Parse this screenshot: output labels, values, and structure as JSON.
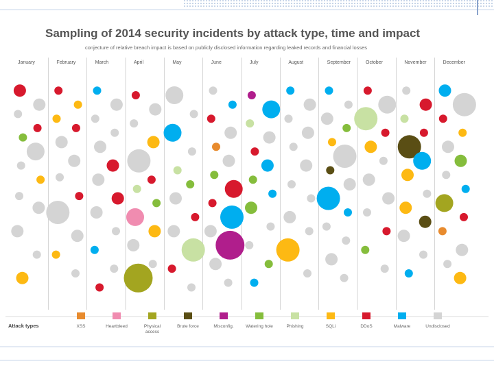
{
  "chart_data": {
    "type": "scatter",
    "title": "Sampling of 2014 security incidents by attack type, time and impact",
    "subtitle": "conjecture of relative breach impact is based on publicly disclosed information regarding leaked records and financial losses",
    "months": [
      "January",
      "February",
      "March",
      "April",
      "May",
      "June",
      "July",
      "August",
      "September",
      "October",
      "November",
      "December"
    ],
    "legend_title": "Attack types",
    "attack_types": [
      {
        "key": "xss",
        "label": "XSS",
        "color": "#E88B2E"
      },
      {
        "key": "heartbleed",
        "label": "Heartbleed",
        "color": "#F08CB0"
      },
      {
        "key": "physical",
        "label": "Physical access",
        "color": "#A3A520"
      },
      {
        "key": "brute",
        "label": "Brute force",
        "color": "#5A4E14"
      },
      {
        "key": "misconfig",
        "label": "Misconfig.",
        "color": "#B01E8C"
      },
      {
        "key": "watering",
        "label": "Watering hole",
        "color": "#85BD3C"
      },
      {
        "key": "phishing",
        "label": "Phishing",
        "color": "#C8E1A3"
      },
      {
        "key": "sqli",
        "label": "SQLi",
        "color": "#FDB913"
      },
      {
        "key": "ddos",
        "label": "DDoS",
        "color": "#D7192D"
      },
      {
        "key": "malware",
        "label": "Malware",
        "color": "#00AEEF"
      },
      {
        "key": "undisclosed",
        "label": "Undisclosed",
        "color": "#D4D4D4"
      }
    ],
    "incidents": [
      {
        "month": 1,
        "pos": 0.1,
        "type": "ddos",
        "impact": 2
      },
      {
        "month": 1,
        "pos": 0.16,
        "type": "undisclosed",
        "impact": 2
      },
      {
        "month": 1,
        "pos": 0.2,
        "type": "undisclosed",
        "impact": 1
      },
      {
        "month": 1,
        "pos": 0.26,
        "type": "ddos",
        "impact": 1
      },
      {
        "month": 1,
        "pos": 0.3,
        "type": "watering",
        "impact": 1
      },
      {
        "month": 1,
        "pos": 0.36,
        "type": "undisclosed",
        "impact": 3
      },
      {
        "month": 1,
        "pos": 0.42,
        "type": "undisclosed",
        "impact": 1
      },
      {
        "month": 1,
        "pos": 0.48,
        "type": "sqli",
        "impact": 1
      },
      {
        "month": 1,
        "pos": 0.55,
        "type": "undisclosed",
        "impact": 1
      },
      {
        "month": 1,
        "pos": 0.6,
        "type": "undisclosed",
        "impact": 2
      },
      {
        "month": 1,
        "pos": 0.7,
        "type": "undisclosed",
        "impact": 2
      },
      {
        "month": 1,
        "pos": 0.8,
        "type": "undisclosed",
        "impact": 1
      },
      {
        "month": 1,
        "pos": 0.9,
        "type": "sqli",
        "impact": 2
      },
      {
        "month": 2,
        "pos": 0.1,
        "type": "ddos",
        "impact": 1
      },
      {
        "month": 2,
        "pos": 0.16,
        "type": "sqli",
        "impact": 1
      },
      {
        "month": 2,
        "pos": 0.22,
        "type": "sqli",
        "impact": 1
      },
      {
        "month": 2,
        "pos": 0.26,
        "type": "ddos",
        "impact": 1
      },
      {
        "month": 2,
        "pos": 0.32,
        "type": "undisclosed",
        "impact": 2
      },
      {
        "month": 2,
        "pos": 0.4,
        "type": "undisclosed",
        "impact": 2
      },
      {
        "month": 2,
        "pos": 0.47,
        "type": "undisclosed",
        "impact": 1
      },
      {
        "month": 2,
        "pos": 0.55,
        "type": "ddos",
        "impact": 1
      },
      {
        "month": 2,
        "pos": 0.62,
        "type": "undisclosed",
        "impact": 4
      },
      {
        "month": 2,
        "pos": 0.72,
        "type": "undisclosed",
        "impact": 2
      },
      {
        "month": 2,
        "pos": 0.8,
        "type": "sqli",
        "impact": 1
      },
      {
        "month": 2,
        "pos": 0.88,
        "type": "undisclosed",
        "impact": 1
      },
      {
        "month": 3,
        "pos": 0.1,
        "type": "malware",
        "impact": 1
      },
      {
        "month": 3,
        "pos": 0.16,
        "type": "undisclosed",
        "impact": 2
      },
      {
        "month": 3,
        "pos": 0.22,
        "type": "undisclosed",
        "impact": 1
      },
      {
        "month": 3,
        "pos": 0.28,
        "type": "undisclosed",
        "impact": 1
      },
      {
        "month": 3,
        "pos": 0.34,
        "type": "undisclosed",
        "impact": 2
      },
      {
        "month": 3,
        "pos": 0.42,
        "type": "ddos",
        "impact": 2
      },
      {
        "month": 3,
        "pos": 0.48,
        "type": "undisclosed",
        "impact": 2
      },
      {
        "month": 3,
        "pos": 0.56,
        "type": "ddos",
        "impact": 2
      },
      {
        "month": 3,
        "pos": 0.62,
        "type": "undisclosed",
        "impact": 2
      },
      {
        "month": 3,
        "pos": 0.7,
        "type": "undisclosed",
        "impact": 1
      },
      {
        "month": 3,
        "pos": 0.78,
        "type": "malware",
        "impact": 1
      },
      {
        "month": 3,
        "pos": 0.86,
        "type": "undisclosed",
        "impact": 1
      },
      {
        "month": 3,
        "pos": 0.94,
        "type": "ddos",
        "impact": 1
      },
      {
        "month": 4,
        "pos": 0.12,
        "type": "ddos",
        "impact": 1
      },
      {
        "month": 4,
        "pos": 0.18,
        "type": "undisclosed",
        "impact": 2
      },
      {
        "month": 4,
        "pos": 0.24,
        "type": "undisclosed",
        "impact": 1
      },
      {
        "month": 4,
        "pos": 0.32,
        "type": "sqli",
        "impact": 2
      },
      {
        "month": 4,
        "pos": 0.4,
        "type": "undisclosed",
        "impact": 4
      },
      {
        "month": 4,
        "pos": 0.48,
        "type": "ddos",
        "impact": 1
      },
      {
        "month": 4,
        "pos": 0.52,
        "type": "phishing",
        "impact": 1
      },
      {
        "month": 4,
        "pos": 0.58,
        "type": "watering",
        "impact": 1
      },
      {
        "month": 4,
        "pos": 0.64,
        "type": "heartbleed",
        "impact": 3
      },
      {
        "month": 4,
        "pos": 0.7,
        "type": "sqli",
        "impact": 2
      },
      {
        "month": 4,
        "pos": 0.76,
        "type": "undisclosed",
        "impact": 2
      },
      {
        "month": 4,
        "pos": 0.84,
        "type": "undisclosed",
        "impact": 1
      },
      {
        "month": 4,
        "pos": 0.9,
        "type": "physical",
        "impact": 5
      },
      {
        "month": 5,
        "pos": 0.12,
        "type": "undisclosed",
        "impact": 3
      },
      {
        "month": 5,
        "pos": 0.2,
        "type": "undisclosed",
        "impact": 1
      },
      {
        "month": 5,
        "pos": 0.28,
        "type": "malware",
        "impact": 3
      },
      {
        "month": 5,
        "pos": 0.36,
        "type": "undisclosed",
        "impact": 1
      },
      {
        "month": 5,
        "pos": 0.44,
        "type": "phishing",
        "impact": 1
      },
      {
        "month": 5,
        "pos": 0.5,
        "type": "watering",
        "impact": 1
      },
      {
        "month": 5,
        "pos": 0.56,
        "type": "undisclosed",
        "impact": 2
      },
      {
        "month": 5,
        "pos": 0.64,
        "type": "ddos",
        "impact": 1
      },
      {
        "month": 5,
        "pos": 0.7,
        "type": "undisclosed",
        "impact": 2
      },
      {
        "month": 5,
        "pos": 0.78,
        "type": "phishing",
        "impact": 4
      },
      {
        "month": 5,
        "pos": 0.86,
        "type": "ddos",
        "impact": 1
      },
      {
        "month": 5,
        "pos": 0.94,
        "type": "undisclosed",
        "impact": 1
      },
      {
        "month": 6,
        "pos": 0.1,
        "type": "undisclosed",
        "impact": 1
      },
      {
        "month": 6,
        "pos": 0.16,
        "type": "malware",
        "impact": 1
      },
      {
        "month": 6,
        "pos": 0.22,
        "type": "ddos",
        "impact": 1
      },
      {
        "month": 6,
        "pos": 0.28,
        "type": "undisclosed",
        "impact": 2
      },
      {
        "month": 6,
        "pos": 0.34,
        "type": "xss",
        "impact": 1
      },
      {
        "month": 6,
        "pos": 0.4,
        "type": "undisclosed",
        "impact": 2
      },
      {
        "month": 6,
        "pos": 0.46,
        "type": "watering",
        "impact": 1
      },
      {
        "month": 6,
        "pos": 0.52,
        "type": "ddos",
        "impact": 3
      },
      {
        "month": 6,
        "pos": 0.58,
        "type": "ddos",
        "impact": 1
      },
      {
        "month": 6,
        "pos": 0.64,
        "type": "malware",
        "impact": 4
      },
      {
        "month": 6,
        "pos": 0.7,
        "type": "undisclosed",
        "impact": 2
      },
      {
        "month": 6,
        "pos": 0.76,
        "type": "misconfig",
        "impact": 5
      },
      {
        "month": 6,
        "pos": 0.84,
        "type": "undisclosed",
        "impact": 2
      },
      {
        "month": 6,
        "pos": 0.92,
        "type": "undisclosed",
        "impact": 1
      },
      {
        "month": 7,
        "pos": 0.12,
        "type": "misconfig",
        "impact": 1
      },
      {
        "month": 7,
        "pos": 0.18,
        "type": "malware",
        "impact": 3
      },
      {
        "month": 7,
        "pos": 0.24,
        "type": "phishing",
        "impact": 1
      },
      {
        "month": 7,
        "pos": 0.3,
        "type": "undisclosed",
        "impact": 2
      },
      {
        "month": 7,
        "pos": 0.36,
        "type": "ddos",
        "impact": 1
      },
      {
        "month": 7,
        "pos": 0.42,
        "type": "malware",
        "impact": 2
      },
      {
        "month": 7,
        "pos": 0.48,
        "type": "watering",
        "impact": 1
      },
      {
        "month": 7,
        "pos": 0.54,
        "type": "malware",
        "impact": 1
      },
      {
        "month": 7,
        "pos": 0.6,
        "type": "watering",
        "impact": 2
      },
      {
        "month": 7,
        "pos": 0.68,
        "type": "undisclosed",
        "impact": 1
      },
      {
        "month": 7,
        "pos": 0.76,
        "type": "undisclosed",
        "impact": 1
      },
      {
        "month": 7,
        "pos": 0.84,
        "type": "watering",
        "impact": 1
      },
      {
        "month": 7,
        "pos": 0.92,
        "type": "malware",
        "impact": 1
      },
      {
        "month": 8,
        "pos": 0.1,
        "type": "malware",
        "impact": 1
      },
      {
        "month": 8,
        "pos": 0.16,
        "type": "undisclosed",
        "impact": 2
      },
      {
        "month": 8,
        "pos": 0.22,
        "type": "undisclosed",
        "impact": 1
      },
      {
        "month": 8,
        "pos": 0.28,
        "type": "undisclosed",
        "impact": 2
      },
      {
        "month": 8,
        "pos": 0.34,
        "type": "undisclosed",
        "impact": 1
      },
      {
        "month": 8,
        "pos": 0.42,
        "type": "undisclosed",
        "impact": 2
      },
      {
        "month": 8,
        "pos": 0.5,
        "type": "undisclosed",
        "impact": 1
      },
      {
        "month": 8,
        "pos": 0.56,
        "type": "undisclosed",
        "impact": 1
      },
      {
        "month": 8,
        "pos": 0.64,
        "type": "undisclosed",
        "impact": 2
      },
      {
        "month": 8,
        "pos": 0.7,
        "type": "undisclosed",
        "impact": 1
      },
      {
        "month": 8,
        "pos": 0.78,
        "type": "sqli",
        "impact": 4
      },
      {
        "month": 8,
        "pos": 0.88,
        "type": "undisclosed",
        "impact": 1
      },
      {
        "month": 9,
        "pos": 0.1,
        "type": "malware",
        "impact": 1
      },
      {
        "month": 9,
        "pos": 0.16,
        "type": "undisclosed",
        "impact": 1
      },
      {
        "month": 9,
        "pos": 0.22,
        "type": "undisclosed",
        "impact": 2
      },
      {
        "month": 9,
        "pos": 0.26,
        "type": "watering",
        "impact": 1
      },
      {
        "month": 9,
        "pos": 0.32,
        "type": "sqli",
        "impact": 1
      },
      {
        "month": 9,
        "pos": 0.38,
        "type": "undisclosed",
        "impact": 4
      },
      {
        "month": 9,
        "pos": 0.44,
        "type": "brute",
        "impact": 1
      },
      {
        "month": 9,
        "pos": 0.5,
        "type": "undisclosed",
        "impact": 2
      },
      {
        "month": 9,
        "pos": 0.56,
        "type": "malware",
        "impact": 4
      },
      {
        "month": 9,
        "pos": 0.62,
        "type": "malware",
        "impact": 1
      },
      {
        "month": 9,
        "pos": 0.68,
        "type": "undisclosed",
        "impact": 1
      },
      {
        "month": 9,
        "pos": 0.74,
        "type": "undisclosed",
        "impact": 1
      },
      {
        "month": 9,
        "pos": 0.82,
        "type": "undisclosed",
        "impact": 2
      },
      {
        "month": 9,
        "pos": 0.9,
        "type": "undisclosed",
        "impact": 1
      },
      {
        "month": 10,
        "pos": 0.1,
        "type": "ddos",
        "impact": 1
      },
      {
        "month": 10,
        "pos": 0.16,
        "type": "undisclosed",
        "impact": 3
      },
      {
        "month": 10,
        "pos": 0.22,
        "type": "phishing",
        "impact": 4
      },
      {
        "month": 10,
        "pos": 0.28,
        "type": "ddos",
        "impact": 1
      },
      {
        "month": 10,
        "pos": 0.34,
        "type": "sqli",
        "impact": 2
      },
      {
        "month": 10,
        "pos": 0.4,
        "type": "undisclosed",
        "impact": 1
      },
      {
        "month": 10,
        "pos": 0.48,
        "type": "undisclosed",
        "impact": 2
      },
      {
        "month": 10,
        "pos": 0.56,
        "type": "undisclosed",
        "impact": 2
      },
      {
        "month": 10,
        "pos": 0.62,
        "type": "undisclosed",
        "impact": 1
      },
      {
        "month": 10,
        "pos": 0.7,
        "type": "ddos",
        "impact": 1
      },
      {
        "month": 10,
        "pos": 0.78,
        "type": "watering",
        "impact": 1
      },
      {
        "month": 10,
        "pos": 0.86,
        "type": "undisclosed",
        "impact": 1
      },
      {
        "month": 11,
        "pos": 0.1,
        "type": "undisclosed",
        "impact": 1
      },
      {
        "month": 11,
        "pos": 0.16,
        "type": "ddos",
        "impact": 2
      },
      {
        "month": 11,
        "pos": 0.22,
        "type": "phishing",
        "impact": 1
      },
      {
        "month": 11,
        "pos": 0.28,
        "type": "ddos",
        "impact": 1
      },
      {
        "month": 11,
        "pos": 0.34,
        "type": "brute",
        "impact": 4
      },
      {
        "month": 11,
        "pos": 0.4,
        "type": "malware",
        "impact": 3
      },
      {
        "month": 11,
        "pos": 0.46,
        "type": "sqli",
        "impact": 2
      },
      {
        "month": 11,
        "pos": 0.54,
        "type": "undisclosed",
        "impact": 1
      },
      {
        "month": 11,
        "pos": 0.6,
        "type": "sqli",
        "impact": 2
      },
      {
        "month": 11,
        "pos": 0.66,
        "type": "brute",
        "impact": 2
      },
      {
        "month": 11,
        "pos": 0.72,
        "type": "undisclosed",
        "impact": 2
      },
      {
        "month": 11,
        "pos": 0.8,
        "type": "undisclosed",
        "impact": 1
      },
      {
        "month": 11,
        "pos": 0.88,
        "type": "malware",
        "impact": 1
      },
      {
        "month": 12,
        "pos": 0.1,
        "type": "malware",
        "impact": 2
      },
      {
        "month": 12,
        "pos": 0.16,
        "type": "undisclosed",
        "impact": 4
      },
      {
        "month": 12,
        "pos": 0.22,
        "type": "ddos",
        "impact": 1
      },
      {
        "month": 12,
        "pos": 0.28,
        "type": "sqli",
        "impact": 1
      },
      {
        "month": 12,
        "pos": 0.34,
        "type": "undisclosed",
        "impact": 2
      },
      {
        "month": 12,
        "pos": 0.4,
        "type": "watering",
        "impact": 2
      },
      {
        "month": 12,
        "pos": 0.46,
        "type": "undisclosed",
        "impact": 1
      },
      {
        "month": 12,
        "pos": 0.52,
        "type": "malware",
        "impact": 1
      },
      {
        "month": 12,
        "pos": 0.58,
        "type": "physical",
        "impact": 3
      },
      {
        "month": 12,
        "pos": 0.64,
        "type": "ddos",
        "impact": 1
      },
      {
        "month": 12,
        "pos": 0.7,
        "type": "xss",
        "impact": 1
      },
      {
        "month": 12,
        "pos": 0.78,
        "type": "undisclosed",
        "impact": 2
      },
      {
        "month": 12,
        "pos": 0.84,
        "type": "undisclosed",
        "impact": 1
      },
      {
        "month": 12,
        "pos": 0.9,
        "type": "sqli",
        "impact": 2
      }
    ]
  }
}
